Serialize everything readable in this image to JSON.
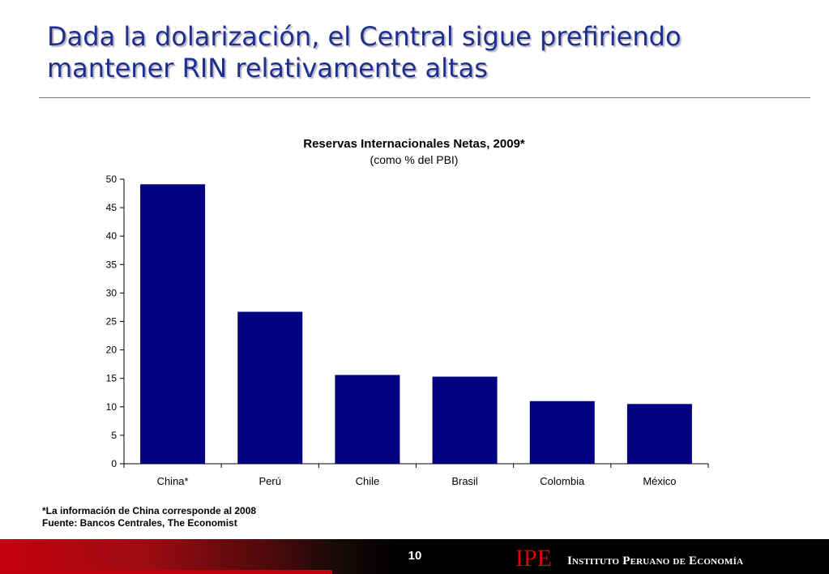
{
  "slide": {
    "title_line1": "Dada la dolarización, el Central sigue prefiriendo",
    "title_line2": "mantener RIN relativamente altas",
    "footnote": "*La información de China corresponde al 2008",
    "source": "Fuente: Bancos Centrales, The Economist",
    "page_number": "10",
    "logo": "IPE",
    "org_name": "Instituto Peruano de Economía"
  },
  "colors": {
    "title": "#1f2f8f",
    "bar": "#000080",
    "logo": "#d60012"
  },
  "chart_data": {
    "type": "bar",
    "title": "Reservas Internacionales Netas, 2009*",
    "subtitle": "(como % del PBI)",
    "categories": [
      "China*",
      "Perú",
      "Chile",
      "Brasil",
      "Colombia",
      "México"
    ],
    "values": [
      49.1,
      26.7,
      15.6,
      15.3,
      11.0,
      10.5
    ],
    "ylim": [
      0,
      50
    ],
    "yticks": [
      0,
      5,
      10,
      15,
      20,
      25,
      30,
      35,
      40,
      45,
      50
    ],
    "grid": false,
    "legend": false
  }
}
